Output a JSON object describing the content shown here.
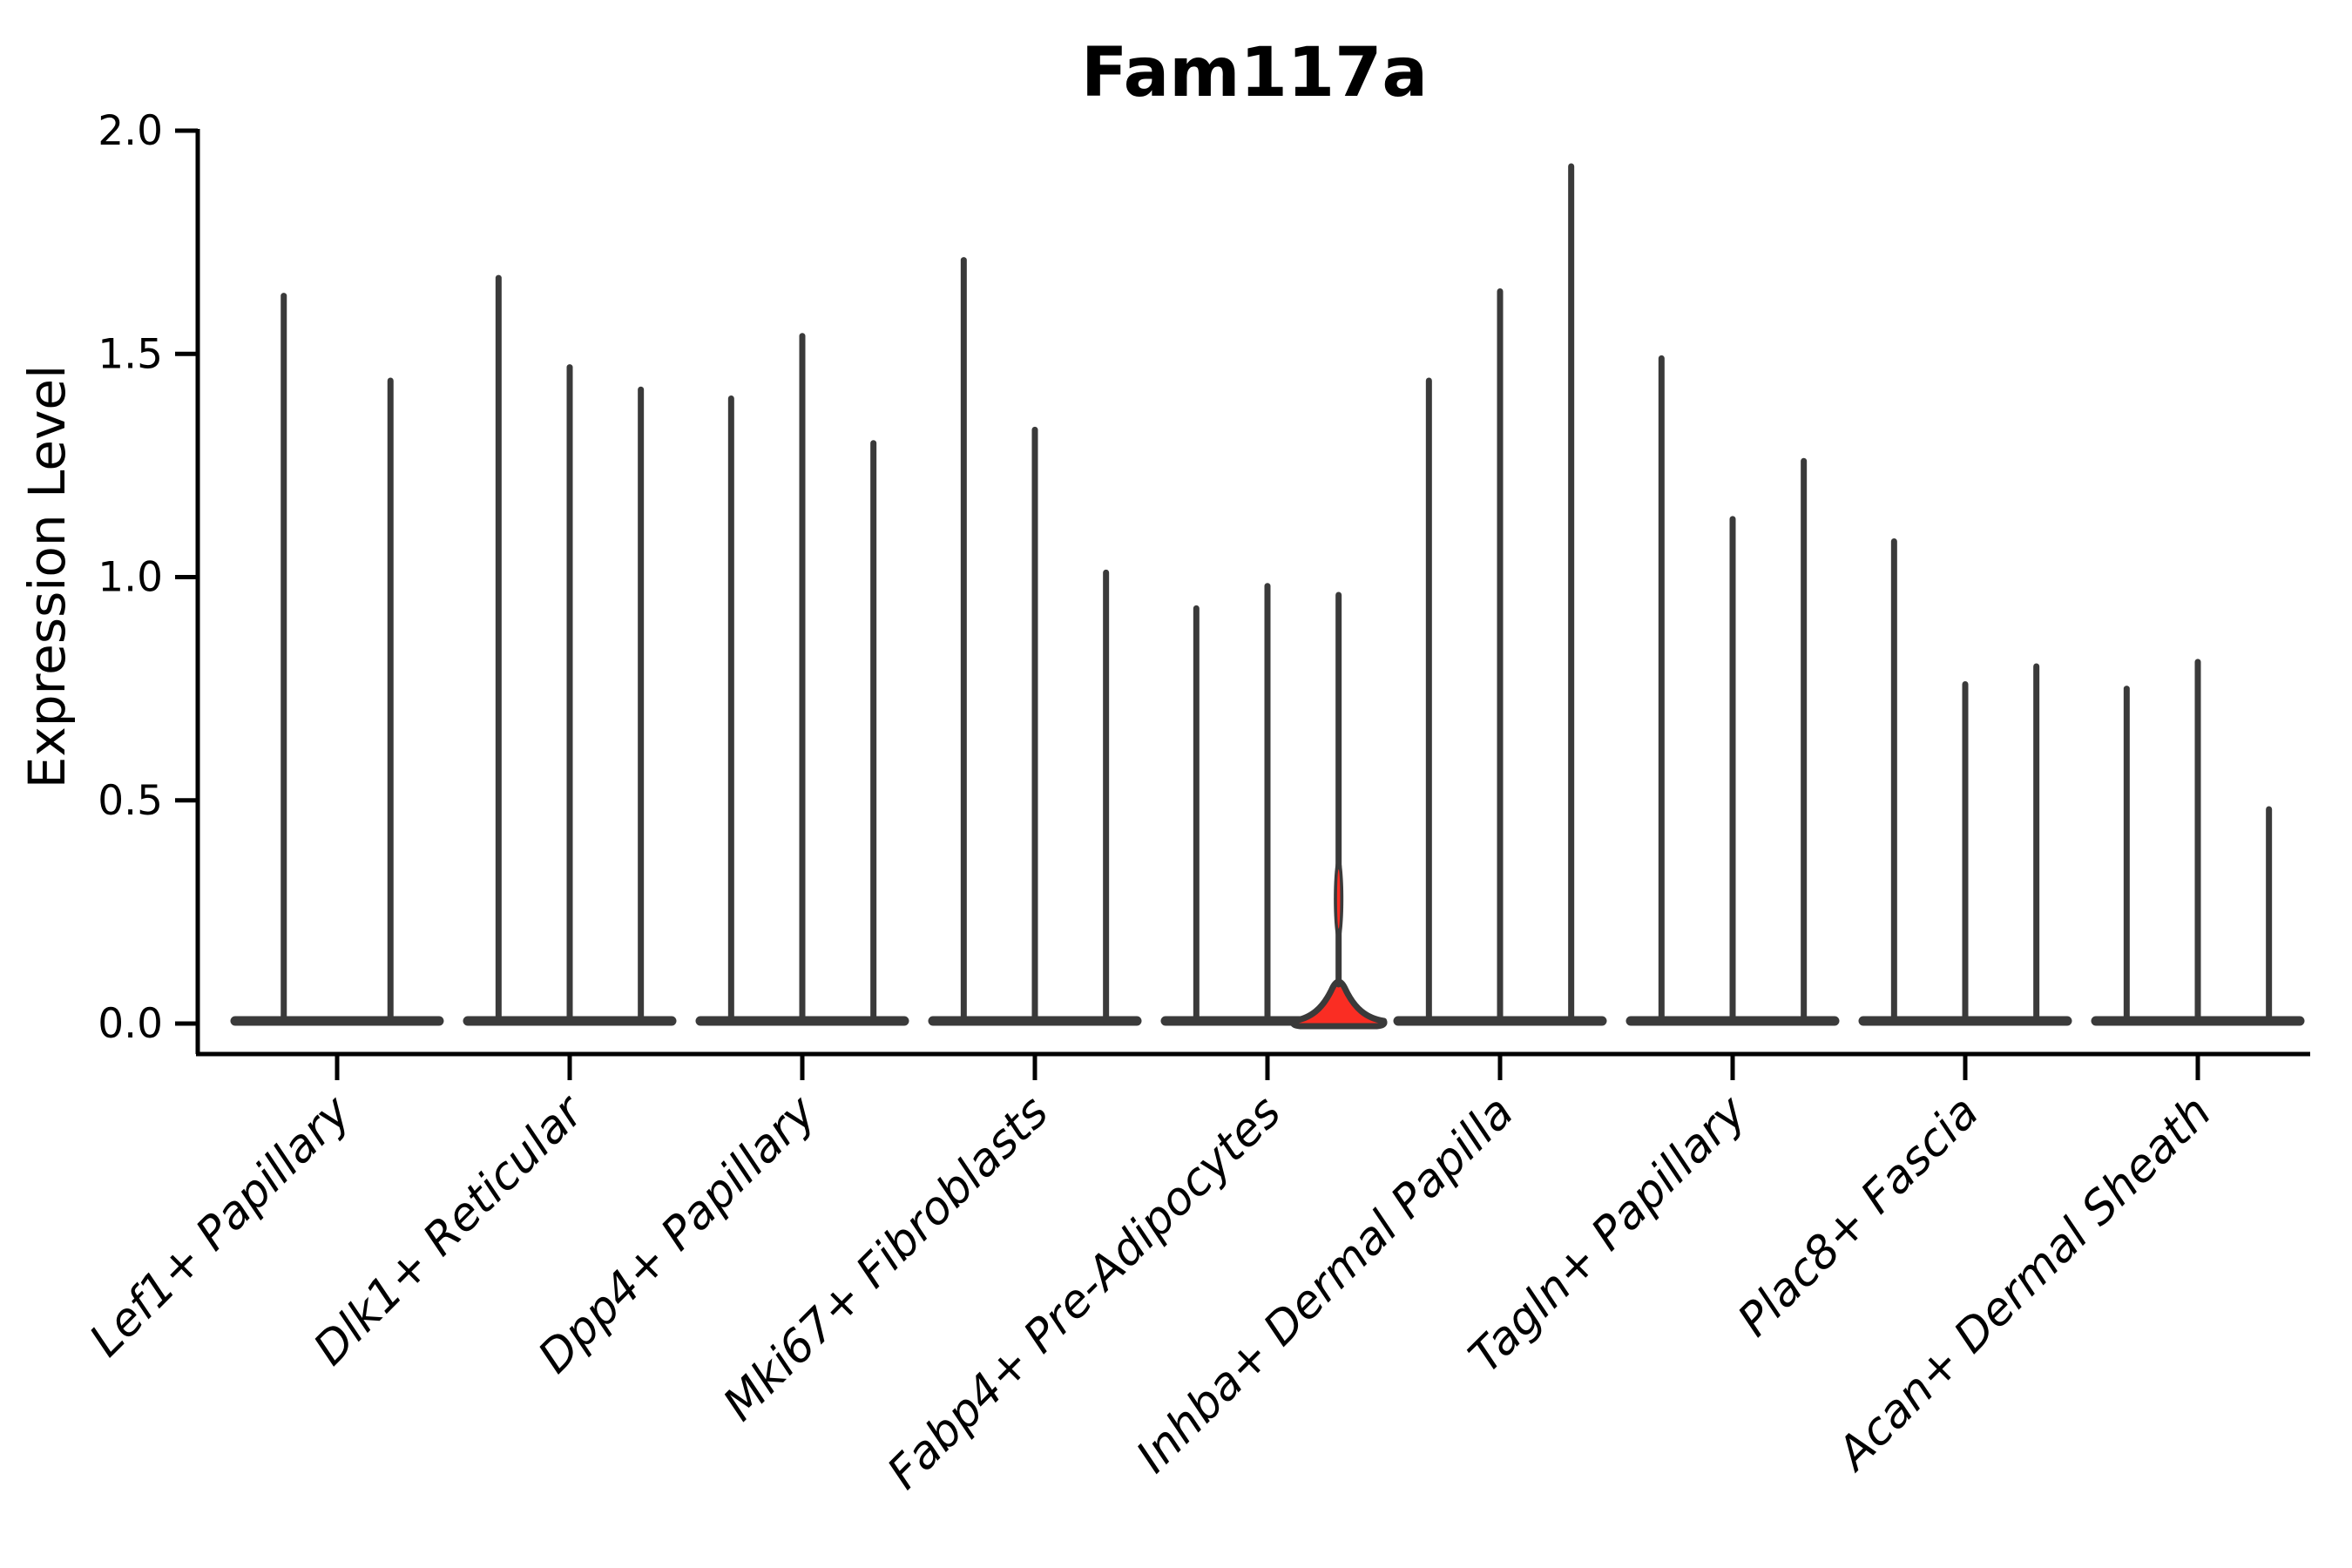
{
  "page": {
    "background": "#ffffff"
  },
  "title": "Fam117a",
  "chart_data": {
    "type": "violin",
    "title": "Fam117a",
    "xlabel": "",
    "ylabel": "Expression Level",
    "ylim": [
      0.0,
      2.0
    ],
    "ytick_labels": [
      "0.0",
      "0.5",
      "1.0",
      "1.5",
      "2.0"
    ],
    "ytick_values": [
      0.0,
      0.5,
      1.0,
      1.5,
      2.0
    ],
    "grid": false,
    "legend": "none",
    "style_note": "Each group shows thin spike-shaped violins: a wide flat body at expression 0 with a narrow vertical spike up to the maximum expression value. One violin (3rd of Fabp4+ Pre-Adipocytes) is filled red; all others are dark gray.",
    "groups": [
      {
        "label": "Lef1+ Papillary",
        "violin_maxima": [
          1.63,
          1.44
        ]
      },
      {
        "label": "Dlk1+ Reticular",
        "violin_maxima": [
          1.67,
          1.47,
          1.42
        ]
      },
      {
        "label": "Dpp4+ Papillary",
        "violin_maxima": [
          1.4,
          1.54,
          1.3
        ]
      },
      {
        "label": "Mki67+ Fibroblasts",
        "violin_maxima": [
          1.71,
          1.33,
          1.01
        ]
      },
      {
        "label": "Fabp4+ Pre-Adipocytes",
        "violin_maxima": [
          0.93,
          0.98,
          0.96
        ],
        "highlighted_violin_index": 2
      },
      {
        "label": "Inhba+ Dermal Papilla",
        "violin_maxima": [
          1.44,
          1.64,
          1.92
        ]
      },
      {
        "label": "Tagln+ Papillary",
        "violin_maxima": [
          1.49,
          1.13,
          1.26
        ]
      },
      {
        "label": "Plac8+ Fascia",
        "violin_maxima": [
          1.08,
          0.76,
          0.8
        ]
      },
      {
        "label": "Acan+ Dermal Sheath",
        "violin_maxima": [
          0.75,
          0.81,
          0.48
        ]
      }
    ]
  },
  "colors": {
    "violin_edge": "#3a3a3a",
    "violin_fill": "#3a3a3a",
    "highlight_fill": "#fa2d23",
    "axis": "#000000",
    "text": "#000000",
    "background": "#ffffff"
  }
}
